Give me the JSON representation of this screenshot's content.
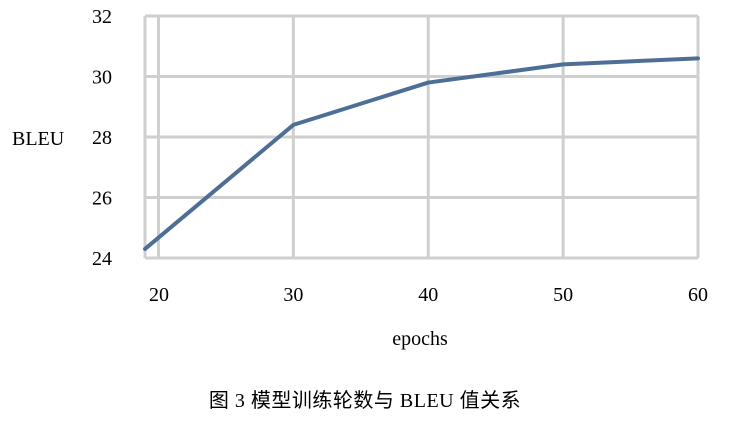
{
  "chart_data": {
    "type": "line",
    "x": [
      19,
      30,
      40,
      50,
      60
    ],
    "series": [
      {
        "values": [
          24.3,
          28.4,
          29.8,
          30.4,
          30.6
        ]
      }
    ],
    "x_ticks": [
      "20",
      "30",
      "40",
      "50",
      "60"
    ],
    "y_ticks": [
      "24",
      "26",
      "28",
      "30",
      "32"
    ],
    "xlabel": "epochs",
    "ylabel": "BLEU",
    "xlim": [
      19,
      60
    ],
    "ylim": [
      24,
      32
    ],
    "grid": true,
    "line_color": "#4e6f95",
    "grid_color": "#cfcfcf"
  },
  "caption": "图 3  模型训练轮数与 BLEU 值关系"
}
